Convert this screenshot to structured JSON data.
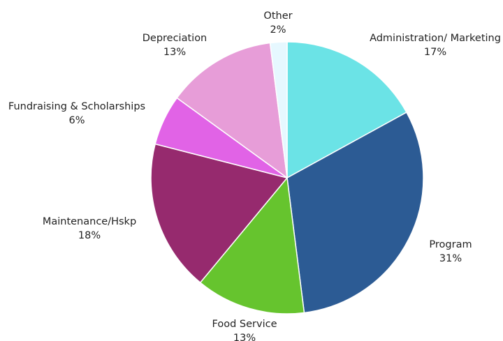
{
  "chart_data": {
    "type": "pie",
    "title": "",
    "start_angle_deg": 0,
    "direction": "clockwise",
    "slices": [
      {
        "name": "Administration/ Marketing",
        "value": 17,
        "value_label": "17%",
        "color": "#6be3e6"
      },
      {
        "name": "Program",
        "value": 31,
        "value_label": "31%",
        "color": "#2c5b94"
      },
      {
        "name": "Food Service",
        "value": 13,
        "value_label": "13%",
        "color": "#66c42e"
      },
      {
        "name": "Maintenance/Hskp",
        "value": 18,
        "value_label": "18%",
        "color": "#962a6e"
      },
      {
        "name": "Fundraising & Scholarships",
        "value": 6,
        "value_label": "6%",
        "color": "#e163e6"
      },
      {
        "name": "Depreciation",
        "value": 13,
        "value_label": "13%",
        "color": "#e79dd8"
      },
      {
        "name": "Other",
        "value": 2,
        "value_label": "2%",
        "color": "#e6f8ff"
      }
    ]
  }
}
